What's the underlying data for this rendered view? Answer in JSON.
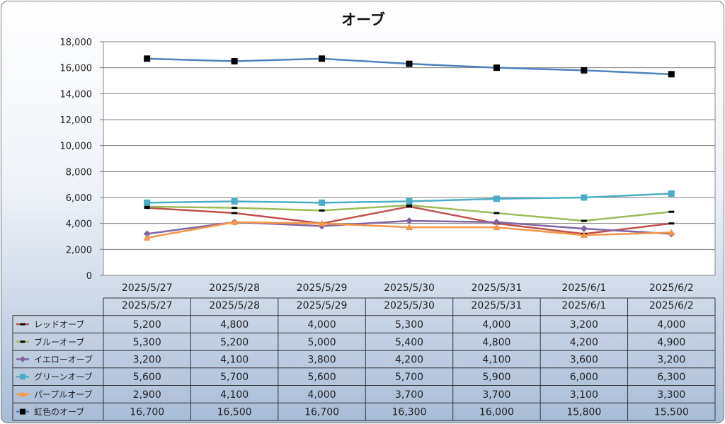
{
  "chart_data": {
    "type": "line",
    "title": "オーブ",
    "categories": [
      "2025/5/27",
      "2025/5/28",
      "2025/5/29",
      "2025/5/30",
      "2025/5/31",
      "2025/6/1",
      "2025/6/2"
    ],
    "ylim": [
      0,
      18000
    ],
    "yticks": [
      "0",
      "2,000",
      "4,000",
      "6,000",
      "8,000",
      "10,000",
      "12,000",
      "14,000",
      "16,000",
      "18,000"
    ],
    "grid": true,
    "legend": "data-table",
    "series": [
      {
        "name": "レッドオーブ",
        "color": "#c0504d",
        "marker": "dash",
        "marker_color": "#000000",
        "values": [
          5200,
          4800,
          4000,
          5300,
          4000,
          3200,
          4000
        ],
        "labels": [
          "5,200",
          "4,800",
          "4,000",
          "5,300",
          "4,000",
          "3,200",
          "4,000"
        ]
      },
      {
        "name": "ブルーオーブ",
        "color": "#9bbb59",
        "marker": "dash",
        "marker_color": "#000000",
        "values": [
          5300,
          5200,
          5000,
          5400,
          4800,
          4200,
          4900
        ],
        "labels": [
          "5,300",
          "5,200",
          "5,000",
          "5,400",
          "4,800",
          "4,200",
          "4,900"
        ]
      },
      {
        "name": "イエローオーブ",
        "color": "#8064a2",
        "marker": "diamond",
        "marker_color": "#8064a2",
        "values": [
          3200,
          4100,
          3800,
          4200,
          4100,
          3600,
          3200
        ],
        "labels": [
          "3,200",
          "4,100",
          "3,800",
          "4,200",
          "4,100",
          "3,600",
          "3,200"
        ]
      },
      {
        "name": "グリーンオーブ",
        "color": "#4bacc6",
        "marker": "square",
        "marker_color": "#4bacc6",
        "values": [
          5600,
          5700,
          5600,
          5700,
          5900,
          6000,
          6300
        ],
        "labels": [
          "5,600",
          "5,700",
          "5,600",
          "5,700",
          "5,900",
          "6,000",
          "6,300"
        ]
      },
      {
        "name": "パープルオーブ",
        "color": "#f79646",
        "marker": "triangle",
        "marker_color": "#f79646",
        "values": [
          2900,
          4100,
          4000,
          3700,
          3700,
          3100,
          3300
        ],
        "labels": [
          "2,900",
          "4,100",
          "4,000",
          "3,700",
          "3,700",
          "3,100",
          "3,300"
        ]
      },
      {
        "name": "虹色のオーブ",
        "color": "#4f81bd",
        "marker": "square",
        "marker_color": "#000000",
        "values": [
          16700,
          16500,
          16700,
          16300,
          16000,
          15800,
          15500
        ],
        "labels": [
          "16,700",
          "16,500",
          "16,700",
          "16,300",
          "16,000",
          "15,800",
          "15,500"
        ]
      }
    ]
  }
}
